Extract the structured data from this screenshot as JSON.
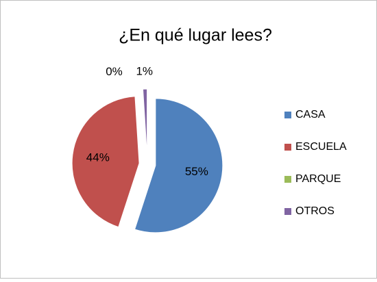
{
  "chart_data": {
    "type": "pie",
    "title": "¿En qué lugar lees?",
    "categories": [
      "CASA",
      "ESCUELA",
      "PARQUE",
      "OTROS"
    ],
    "values": [
      55,
      44,
      0,
      1
    ],
    "value_labels": [
      "55%",
      "44%",
      "0%",
      "1%"
    ],
    "colors": [
      "#4f81bd",
      "#c0504d",
      "#9bbb59",
      "#8064a2"
    ],
    "legend": "right"
  }
}
